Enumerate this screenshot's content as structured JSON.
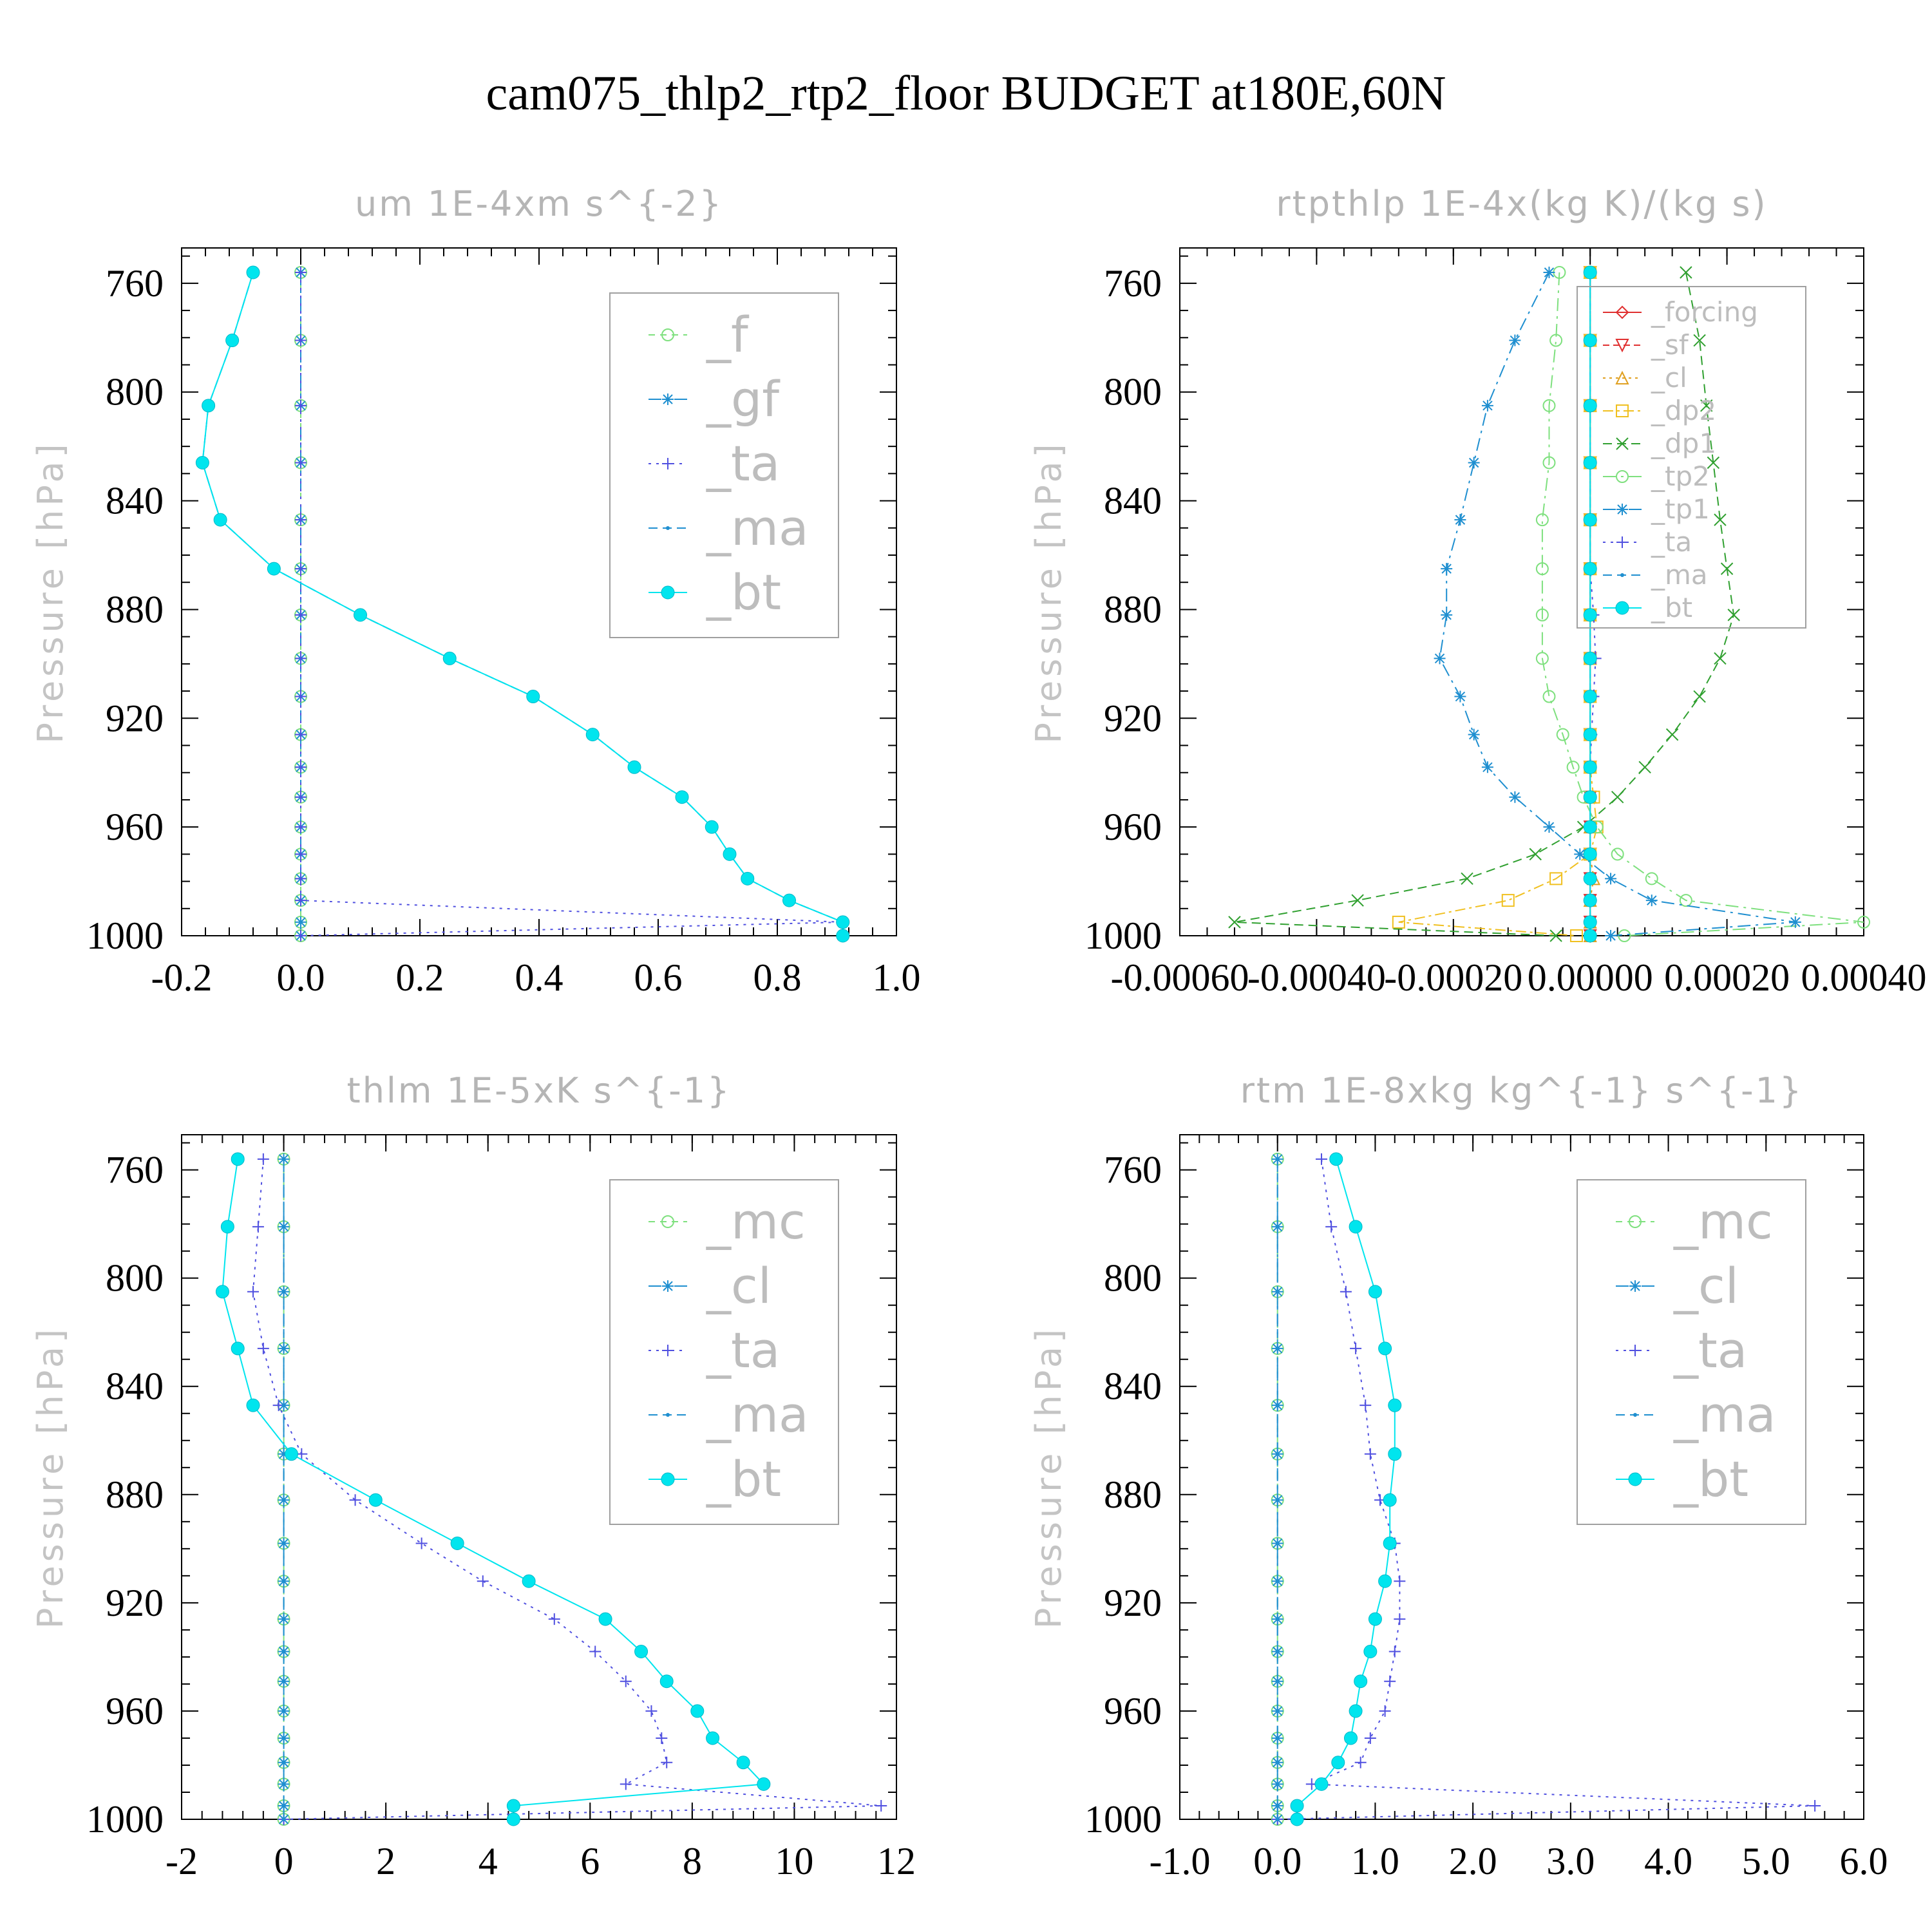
{
  "title": "cam075_thlp2_rtp2_floor  BUDGET at180E,60N",
  "colors": {
    "f": "#7ee07e",
    "gf": "#1f8fd0",
    "ta": "#5050e0",
    "ma": "#1f8fd0",
    "bt": "#00e5ee",
    "mc": "#7ee07e",
    "cl_um": "#1f8fd0",
    "forcing": "#e03030",
    "sf": "#e03030",
    "cl": "#e0a020",
    "dp2": "#f0c020",
    "dp1": "#30a030",
    "tp2": "#7ee07e",
    "tp1": "#1f8fd0"
  },
  "chart_data": [
    {
      "id": "um",
      "type": "line",
      "title": "um   1E-4xm s^{-2}",
      "ylabel": "Pressure [hPa]",
      "xlim": [
        -0.2,
        1.0
      ],
      "ylim": [
        1000,
        747
      ],
      "xticks": [
        "-0.2",
        "0.0",
        "0.2",
        "0.4",
        "0.6",
        "0.8",
        "1.0"
      ],
      "xtick_values": [
        -0.2,
        0.0,
        0.2,
        0.4,
        0.6,
        0.8,
        1.0
      ],
      "yticks": [
        "760",
        "800",
        "840",
        "880",
        "920",
        "960",
        "1000"
      ],
      "legend_style": "big",
      "legend": [
        "_f",
        "_gf",
        "_ta",
        "_ma",
        "_bt"
      ],
      "pressure": [
        756,
        781,
        805,
        826,
        847,
        865,
        882,
        898,
        912,
        926,
        938,
        949,
        960,
        970,
        979,
        987,
        995,
        1000
      ],
      "series": [
        {
          "name": "_f",
          "key": "f",
          "marker": "circle",
          "dash": "10,8",
          "values": [
            0,
            0,
            0,
            0,
            0,
            0,
            0,
            0,
            0,
            0,
            0,
            0,
            0,
            0,
            0,
            0,
            0,
            0
          ]
        },
        {
          "name": "_gf",
          "key": "gf",
          "marker": "star",
          "dash": "20,8,4,8",
          "values": [
            0,
            0,
            0,
            0,
            0,
            0,
            0,
            0,
            0,
            0,
            0,
            0,
            0,
            0,
            0,
            0,
            0,
            0
          ]
        },
        {
          "name": "_ta",
          "key": "ta",
          "marker": "plus",
          "dash": "4,8",
          "values": [
            0,
            0,
            0,
            0,
            0,
            0,
            0,
            0,
            0,
            0,
            0,
            0,
            0,
            0,
            0,
            0,
            0.91,
            0.0
          ]
        },
        {
          "name": "_ma",
          "key": "ma",
          "marker": "dot",
          "dash": "14,8",
          "values": [
            -0.08,
            -0.115,
            -0.155,
            -0.165,
            -0.135,
            -0.045,
            0.1,
            0.25,
            0.39,
            0.49,
            0.56,
            0.64,
            0.69,
            0.72,
            0.75,
            0.82,
            0.91,
            0.91
          ]
        },
        {
          "name": "_bt",
          "key": "bt",
          "marker": "bigdot",
          "dash": "",
          "values": [
            -0.08,
            -0.115,
            -0.155,
            -0.165,
            -0.135,
            -0.045,
            0.1,
            0.25,
            0.39,
            0.49,
            0.56,
            0.64,
            0.69,
            0.72,
            0.75,
            0.82,
            0.91,
            0.91
          ]
        }
      ]
    },
    {
      "id": "rtpthlp",
      "type": "line",
      "title": "rtpthlp   1E-4x(kg K)/(kg s)",
      "ylabel": "Pressure [hPa]",
      "xlim": [
        -0.0006,
        0.0004
      ],
      "ylim": [
        1000,
        747
      ],
      "xticks": [
        "-0.00060",
        "-0.00040",
        "-0.00020",
        "0.00000",
        "0.00020",
        "0.00040"
      ],
      "xtick_values": [
        -0.0006,
        -0.0004,
        -0.0002,
        0.0,
        0.0002,
        0.0004
      ],
      "yticks": [
        "760",
        "800",
        "840",
        "880",
        "920",
        "960",
        "1000"
      ],
      "legend_style": "small",
      "legend": [
        "_forcing",
        "_sf",
        "_cl",
        "_dp2",
        "_dp1",
        "_tp2",
        "_tp1",
        "_ta",
        "_ma",
        "_bt"
      ],
      "pressure": [
        756,
        781,
        805,
        826,
        847,
        865,
        882,
        898,
        912,
        926,
        938,
        949,
        960,
        970,
        979,
        987,
        995,
        1000
      ],
      "series": [
        {
          "name": "_forcing",
          "key": "forcing",
          "marker": "diamond",
          "dash": "",
          "values": [
            0,
            0,
            0,
            0,
            0,
            0,
            0,
            0,
            0,
            0,
            0,
            0,
            0,
            0,
            0,
            0,
            0,
            0
          ]
        },
        {
          "name": "_sf",
          "key": "sf",
          "marker": "tri-down",
          "dash": "10,6",
          "values": [
            0,
            0,
            0,
            0,
            0,
            0,
            0,
            0,
            0,
            0,
            0,
            0,
            0,
            0,
            0,
            0,
            0,
            0
          ]
        },
        {
          "name": "_cl",
          "key": "cl",
          "marker": "tri-up",
          "dash": "4,6",
          "values": [
            0,
            0,
            0,
            0,
            0,
            0,
            0,
            0,
            0,
            0,
            0,
            0,
            0,
            0,
            5e-06,
            0,
            0,
            0
          ]
        },
        {
          "name": "_dp2",
          "key": "dp2",
          "marker": "square",
          "dash": "16,6,4,6",
          "values": [
            0,
            0,
            0,
            0,
            0,
            0,
            0,
            0,
            0,
            0,
            0,
            5e-06,
            1e-05,
            0,
            -5e-05,
            -0.00012,
            -0.00028,
            -2e-05
          ]
        },
        {
          "name": "_dp1",
          "key": "dp1",
          "marker": "x",
          "dash": "14,8",
          "values": [
            0.00014,
            0.00016,
            0.00017,
            0.00018,
            0.00019,
            0.0002,
            0.00021,
            0.00019,
            0.00016,
            0.00012,
            8e-05,
            4e-05,
            -1e-05,
            -8e-05,
            -0.00018,
            -0.00034,
            -0.00052,
            -5e-05
          ]
        },
        {
          "name": "_tp2",
          "key": "tp2",
          "marker": "circle",
          "dash": "20,8,4,8",
          "values": [
            -4.5e-05,
            -5e-05,
            -6e-05,
            -6e-05,
            -7e-05,
            -7e-05,
            -7e-05,
            -7e-05,
            -6e-05,
            -4e-05,
            -2.5e-05,
            -1e-05,
            1e-05,
            4e-05,
            9e-05,
            0.00014,
            0.0004,
            5e-05
          ]
        },
        {
          "name": "_tp1",
          "key": "tp1",
          "marker": "star",
          "dash": "20,8,4,8",
          "values": [
            -6e-05,
            -0.00011,
            -0.00015,
            -0.00017,
            -0.00019,
            -0.00021,
            -0.00021,
            -0.00022,
            -0.00019,
            -0.00017,
            -0.00015,
            -0.00011,
            -6e-05,
            -1.5e-05,
            3e-05,
            9e-05,
            0.0003,
            3e-05
          ]
        },
        {
          "name": "_ta",
          "key": "ta",
          "marker": "plus",
          "dash": "4,8",
          "values": [
            0,
            0,
            0,
            0,
            0,
            0,
            5e-06,
            8e-06,
            5e-06,
            2e-06,
            0,
            0,
            0,
            0,
            0,
            0,
            0,
            0
          ]
        },
        {
          "name": "_ma",
          "key": "ma",
          "marker": "dot",
          "dash": "14,8",
          "values": [
            0,
            0,
            0,
            0,
            0,
            0,
            0,
            0,
            0,
            0,
            0,
            0,
            0,
            0,
            0,
            0,
            0,
            0
          ]
        },
        {
          "name": "_bt",
          "key": "bt",
          "marker": "bigdot",
          "dash": "",
          "values": [
            0,
            0,
            0,
            0,
            0,
            0,
            0,
            0,
            0,
            0,
            0,
            0,
            0,
            0,
            0,
            0,
            0,
            0
          ]
        }
      ]
    },
    {
      "id": "thlm",
      "type": "line",
      "title": "thlm   1E-5xK s^{-1}",
      "ylabel": "Pressure [hPa]",
      "xlim": [
        -2,
        12
      ],
      "ylim": [
        1000,
        747
      ],
      "xticks": [
        "-2",
        "0",
        "2",
        "4",
        "6",
        "8",
        "10",
        "12"
      ],
      "xtick_values": [
        -2,
        0,
        2,
        4,
        6,
        8,
        10,
        12
      ],
      "yticks": [
        "760",
        "800",
        "840",
        "880",
        "920",
        "960",
        "1000"
      ],
      "legend_style": "big",
      "legend": [
        "_mc",
        "_cl",
        "_ta",
        "_ma",
        "_bt"
      ],
      "pressure": [
        756,
        781,
        805,
        826,
        847,
        865,
        882,
        898,
        912,
        926,
        938,
        949,
        960,
        970,
        979,
        987,
        995,
        1000
      ],
      "series": [
        {
          "name": "_mc",
          "key": "mc",
          "marker": "circle",
          "dash": "10,8",
          "values": [
            0,
            0,
            0,
            0,
            0,
            0,
            0,
            0,
            0,
            0,
            0,
            0,
            0,
            0,
            0,
            0,
            0,
            0
          ]
        },
        {
          "name": "_cl",
          "key": "cl_um",
          "marker": "star",
          "dash": "20,8,4,8",
          "values": [
            0,
            0,
            0,
            0,
            0,
            0,
            0,
            0,
            0,
            0,
            0,
            0,
            0,
            0,
            0,
            0,
            0,
            0
          ]
        },
        {
          "name": "_ta",
          "key": "ta",
          "marker": "plus",
          "dash": "4,8",
          "values": [
            -0.4,
            -0.5,
            -0.6,
            -0.4,
            -0.1,
            0.35,
            1.4,
            2.7,
            3.9,
            5.3,
            6.1,
            6.7,
            7.2,
            7.4,
            7.5,
            6.7,
            11.7,
            0.0
          ]
        },
        {
          "name": "_ma",
          "key": "ma",
          "marker": "dot",
          "dash": "14,8",
          "values": [
            0,
            0,
            0,
            0,
            0,
            0,
            0,
            0,
            0,
            0,
            0,
            0,
            0,
            0,
            0,
            0,
            0,
            0
          ]
        },
        {
          "name": "_bt",
          "key": "bt",
          "marker": "bigdot",
          "dash": "",
          "values": [
            -0.9,
            -1.1,
            -1.2,
            -0.9,
            -0.6,
            0.15,
            1.8,
            3.4,
            4.8,
            6.3,
            7.0,
            7.5,
            8.1,
            8.4,
            9.0,
            9.4,
            4.5,
            4.5
          ]
        }
      ]
    },
    {
      "id": "rtm",
      "type": "line",
      "title": "rtm   1E-8xkg kg^{-1} s^{-1}",
      "ylabel": "Pressure [hPa]",
      "xlim": [
        -1.0,
        6.0
      ],
      "ylim": [
        1000,
        747
      ],
      "xticks": [
        "-1.0",
        "0.0",
        "1.0",
        "2.0",
        "3.0",
        "4.0",
        "5.0",
        "6.0"
      ],
      "xtick_values": [
        -1,
        0,
        1,
        2,
        3,
        4,
        5,
        6
      ],
      "yticks": [
        "760",
        "800",
        "840",
        "880",
        "920",
        "960",
        "1000"
      ],
      "legend_style": "big",
      "legend": [
        "_mc",
        "_cl",
        "_ta",
        "_ma",
        "_bt"
      ],
      "pressure": [
        756,
        781,
        805,
        826,
        847,
        865,
        882,
        898,
        912,
        926,
        938,
        949,
        960,
        970,
        979,
        987,
        995,
        1000
      ],
      "series": [
        {
          "name": "_mc",
          "key": "mc",
          "marker": "circle",
          "dash": "10,8",
          "values": [
            0,
            0,
            0,
            0,
            0,
            0,
            0,
            0,
            0,
            0,
            0,
            0,
            0,
            0,
            0,
            0,
            0,
            0
          ]
        },
        {
          "name": "_cl",
          "key": "cl_um",
          "marker": "star",
          "dash": "20,8,4,8",
          "values": [
            0,
            0,
            0,
            0,
            0,
            0,
            0,
            0,
            0,
            0,
            0,
            0,
            0,
            0,
            0,
            0,
            0,
            0
          ]
        },
        {
          "name": "_ta",
          "key": "ta",
          "marker": "plus",
          "dash": "4,8",
          "values": [
            0.45,
            0.55,
            0.7,
            0.8,
            0.9,
            0.95,
            1.05,
            1.2,
            1.25,
            1.25,
            1.2,
            1.15,
            1.1,
            0.95,
            0.85,
            0.35,
            5.5,
            0.0
          ]
        },
        {
          "name": "_ma",
          "key": "ma",
          "marker": "dot",
          "dash": "14,8",
          "values": [
            0,
            0,
            0,
            0,
            0,
            0,
            0,
            0,
            0,
            0,
            0,
            0,
            0,
            0,
            0,
            0,
            0,
            0
          ]
        },
        {
          "name": "_bt",
          "key": "bt",
          "marker": "bigdot",
          "dash": "",
          "values": [
            0.6,
            0.8,
            1.0,
            1.1,
            1.2,
            1.2,
            1.15,
            1.15,
            1.1,
            1.0,
            0.95,
            0.85,
            0.8,
            0.75,
            0.62,
            0.45,
            0.2,
            0.2
          ]
        }
      ]
    }
  ]
}
